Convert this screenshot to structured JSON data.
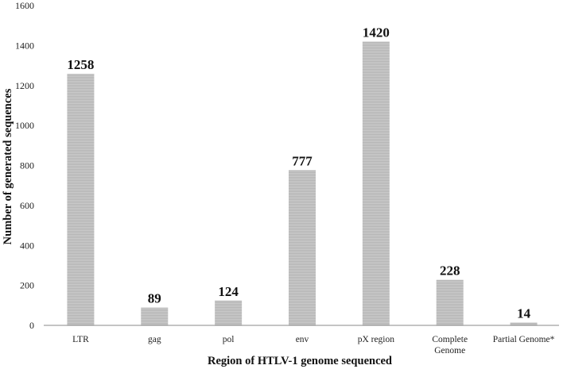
{
  "chart_data": {
    "type": "bar",
    "categories": [
      "LTR",
      "gag",
      "pol",
      "env",
      "pX region",
      "Complete Genome",
      "Partial Genome*"
    ],
    "category_lines": [
      [
        "LTR"
      ],
      [
        "gag"
      ],
      [
        "pol"
      ],
      [
        "env"
      ],
      [
        "pX region"
      ],
      [
        "Complete",
        "Genome"
      ],
      [
        "Partial Genome*"
      ]
    ],
    "values": [
      1258,
      89,
      124,
      777,
      1420,
      228,
      14
    ],
    "data_labels": [
      "1258",
      "89",
      "124",
      "777",
      "1420",
      "228",
      "14"
    ],
    "title": "",
    "xlabel": "Region of HTLV-1 genome sequenced",
    "ylabel": "Number of generated sequences",
    "ylim": [
      0,
      1600
    ],
    "yticks": [
      0,
      200,
      400,
      600,
      800,
      1000,
      1200,
      1400,
      1600
    ],
    "grid": false,
    "legend": "none",
    "bar_color": "#c8c8c8",
    "bar_stripe_color": "#b0b0b0"
  }
}
